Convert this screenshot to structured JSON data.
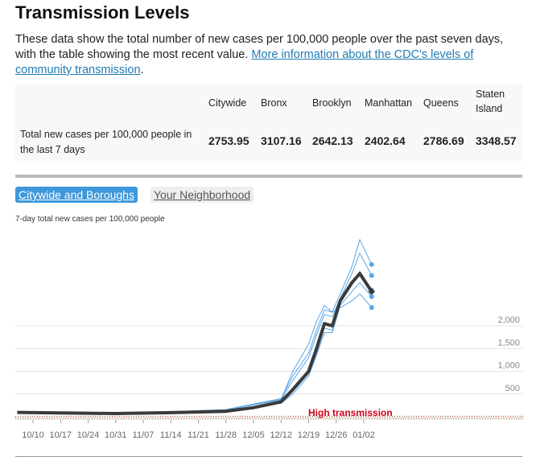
{
  "header": {
    "title": "Transmission Levels",
    "description": "These data show the total number of new cases per 100,000 people over the past seven days, with the table showing the most recent value. ",
    "link_text": "More information about the CDC's levels of community transmission",
    "after_link": "."
  },
  "table": {
    "columns": [
      "Citywide",
      "Bronx",
      "Brooklyn",
      "Manhattan",
      "Queens",
      "Staten Island"
    ],
    "row_label": "Total new cases per 100,000 people in the last 7 days",
    "values": [
      "2753.95",
      "3107.16",
      "2642.13",
      "2402.64",
      "2786.69",
      "3348.57"
    ]
  },
  "tabs": [
    {
      "label": "Citywide and Boroughs",
      "active": true
    },
    {
      "label": "Your Neighborhood",
      "active": false
    }
  ],
  "colors": {
    "citywide": "#3a3a3a",
    "borough": "#5aa6e6",
    "threshold": "#d0021b",
    "active_tab": "#3d97da"
  },
  "chart_data": {
    "type": "line",
    "title": "7-day total new cases per 100,000 people",
    "ylim": [
      0,
      4000
    ],
    "y_ticks": [
      "500",
      "1,000",
      "1,500",
      "2,000"
    ],
    "y_tick_values": [
      500,
      1000,
      1500,
      2000
    ],
    "x_ticks": [
      "10/10",
      "10/17",
      "10/24",
      "10/31",
      "11/07",
      "11/14",
      "11/21",
      "11/28",
      "12/05",
      "12/12",
      "12/19",
      "12/26",
      "01/02"
    ],
    "grid": true,
    "threshold": {
      "value": 100,
      "label": "High transmission"
    },
    "x": [
      "10/06",
      "10/17",
      "10/31",
      "11/14",
      "11/28",
      "12/05",
      "12/12",
      "12/15",
      "12/19",
      "12/21",
      "12/23",
      "12/25",
      "12/27",
      "12/30",
      "01/01",
      "01/04"
    ],
    "series": [
      {
        "values": [
          110,
          100,
          80,
          110,
          160,
          280,
          400,
          900,
          1400,
          1900,
          2350,
          2300,
          2700,
          3300,
          3900,
          3349
        ],
        "emphasis": false
      },
      {
        "values": [
          100,
          90,
          75,
          100,
          150,
          260,
          370,
          800,
          1300,
          1800,
          2250,
          2200,
          2600,
          3150,
          3600,
          3107
        ],
        "emphasis": false
      },
      {
        "values": [
          90,
          85,
          70,
          90,
          120,
          200,
          300,
          550,
          950,
          1400,
          1950,
          1900,
          2500,
          2900,
          3200,
          2787
        ],
        "emphasis": false
      },
      {
        "values": [
          90,
          80,
          65,
          85,
          110,
          180,
          300,
          500,
          900,
          1350,
          1850,
          1850,
          2450,
          2750,
          2950,
          2642
        ],
        "emphasis": false
      },
      {
        "values": [
          95,
          90,
          75,
          95,
          140,
          280,
          380,
          1000,
          1600,
          2100,
          2450,
          2300,
          2400,
          2550,
          2700,
          2403
        ],
        "emphasis": false
      },
      {
        "values": [
          95,
          85,
          70,
          90,
          120,
          200,
          330,
          600,
          1000,
          1500,
          2050,
          2000,
          2550,
          2950,
          3150,
          2754
        ],
        "emphasis": true
      }
    ]
  }
}
